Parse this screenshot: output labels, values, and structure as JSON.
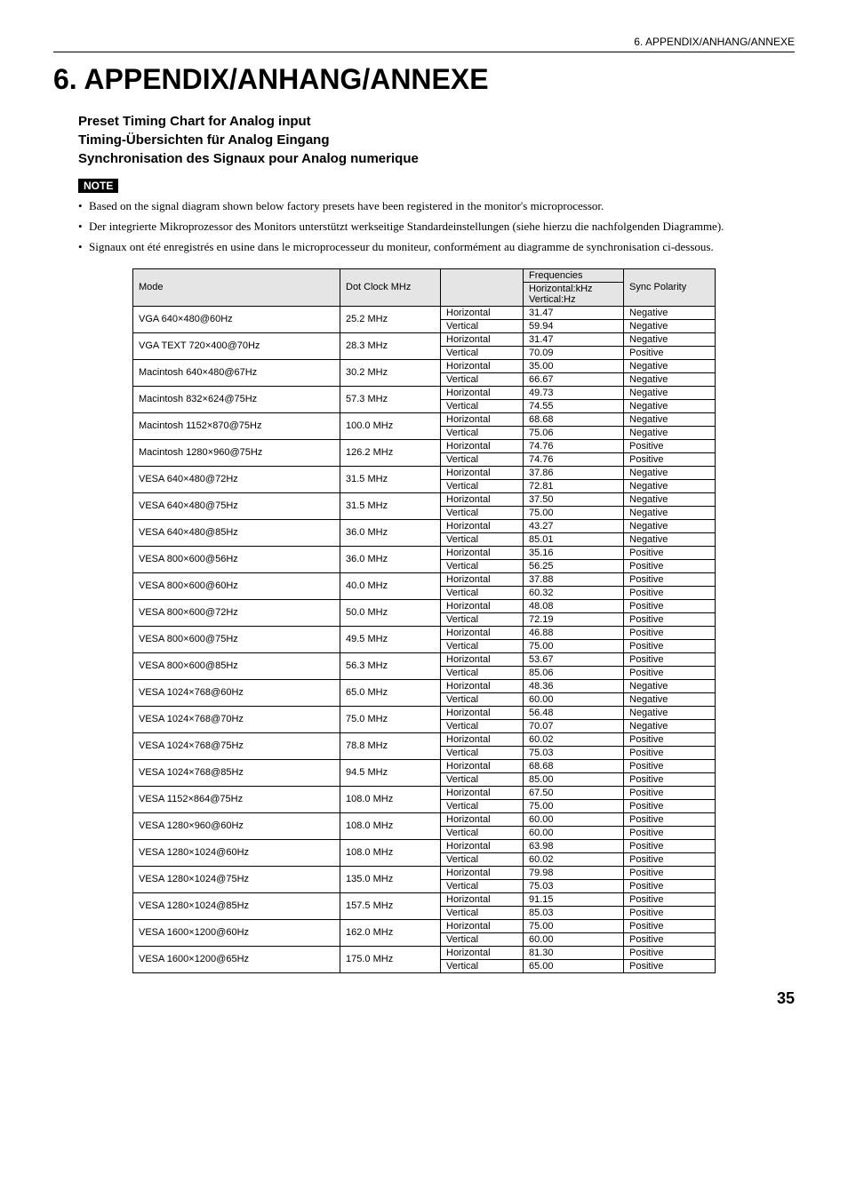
{
  "header": {
    "running_title": "6. APPENDIX/ANHANG/ANNEXE"
  },
  "title": "6. APPENDIX/ANHANG/ANNEXE",
  "subtitles": [
    "Preset Timing Chart for Analog input",
    "Timing-Übersichten für Analog Eingang",
    "Synchronisation des Signaux pour Analog numerique"
  ],
  "note_label": "NOTE",
  "notes": [
    "Based on the signal diagram shown below factory presets have been registered in the monitor's microprocessor.",
    "Der integrierte Mikroprozessor des Monitors unterstützt werkseitige Standardeinstellungen (siehe hierzu die nachfolgenden Diagramme).",
    "Signaux ont été enregistrés en usine dans le microprocesseur du moniteur, conformément au diagramme de synchronisation ci-dessous."
  ],
  "table": {
    "headers": {
      "mode": "Mode",
      "dot_clock": "Dot Clock MHz",
      "frequencies": "Frequencies",
      "freq_h": "Horizontal:kHz",
      "freq_v": "Vertical:Hz",
      "sync": "Sync Polarity"
    },
    "dir_labels": {
      "h": "Horizontal",
      "v": "Vertical"
    },
    "rows": [
      {
        "mode": "VGA 640×480@60Hz",
        "clock": "25.2 MHz",
        "h_freq": "31.47",
        "h_sync": "Negative",
        "v_freq": "59.94",
        "v_sync": "Negative"
      },
      {
        "mode": "VGA TEXT 720×400@70Hz",
        "clock": "28.3 MHz",
        "h_freq": "31.47",
        "h_sync": "Negative",
        "v_freq": "70.09",
        "v_sync": "Positive"
      },
      {
        "mode": "Macintosh 640×480@67Hz",
        "clock": "30.2 MHz",
        "h_freq": "35.00",
        "h_sync": "Negative",
        "v_freq": "66.67",
        "v_sync": "Negative"
      },
      {
        "mode": "Macintosh 832×624@75Hz",
        "clock": "57.3 MHz",
        "h_freq": "49.73",
        "h_sync": "Negative",
        "v_freq": "74.55",
        "v_sync": "Negative"
      },
      {
        "mode": "Macintosh 1152×870@75Hz",
        "clock": "100.0 MHz",
        "h_freq": "68.68",
        "h_sync": "Negative",
        "v_freq": "75.06",
        "v_sync": "Negative"
      },
      {
        "mode": "Macintosh 1280×960@75Hz",
        "clock": "126.2 MHz",
        "h_freq": "74.76",
        "h_sync": "Positive",
        "v_freq": "74.76",
        "v_sync": "Positive"
      },
      {
        "mode": "VESA 640×480@72Hz",
        "clock": "31.5 MHz",
        "h_freq": "37.86",
        "h_sync": "Negative",
        "v_freq": "72.81",
        "v_sync": "Negative"
      },
      {
        "mode": "VESA 640×480@75Hz",
        "clock": "31.5 MHz",
        "h_freq": "37.50",
        "h_sync": "Negative",
        "v_freq": "75.00",
        "v_sync": "Negative"
      },
      {
        "mode": "VESA 640×480@85Hz",
        "clock": "36.0 MHz",
        "h_freq": "43.27",
        "h_sync": "Negative",
        "v_freq": "85.01",
        "v_sync": "Negative"
      },
      {
        "mode": "VESA 800×600@56Hz",
        "clock": "36.0 MHz",
        "h_freq": "35.16",
        "h_sync": "Positive",
        "v_freq": "56.25",
        "v_sync": "Positive"
      },
      {
        "mode": "VESA 800×600@60Hz",
        "clock": "40.0 MHz",
        "h_freq": "37.88",
        "h_sync": "Positive",
        "v_freq": "60.32",
        "v_sync": "Positive"
      },
      {
        "mode": "VESA 800×600@72Hz",
        "clock": "50.0 MHz",
        "h_freq": "48.08",
        "h_sync": "Positive",
        "v_freq": "72.19",
        "v_sync": "Positive"
      },
      {
        "mode": "VESA 800×600@75Hz",
        "clock": "49.5 MHz",
        "h_freq": "46.88",
        "h_sync": "Positive",
        "v_freq": "75.00",
        "v_sync": "Positive"
      },
      {
        "mode": "VESA 800×600@85Hz",
        "clock": "56.3 MHz",
        "h_freq": "53.67",
        "h_sync": "Positive",
        "v_freq": "85.06",
        "v_sync": "Positive"
      },
      {
        "mode": "VESA 1024×768@60Hz",
        "clock": "65.0 MHz",
        "h_freq": "48.36",
        "h_sync": "Negative",
        "v_freq": "60.00",
        "v_sync": "Negative"
      },
      {
        "mode": "VESA 1024×768@70Hz",
        "clock": "75.0 MHz",
        "h_freq": "56.48",
        "h_sync": "Negative",
        "v_freq": "70.07",
        "v_sync": "Negative"
      },
      {
        "mode": "VESA 1024×768@75Hz",
        "clock": "78.8 MHz",
        "h_freq": "60.02",
        "h_sync": "Positive",
        "v_freq": "75.03",
        "v_sync": "Positive"
      },
      {
        "mode": "VESA 1024×768@85Hz",
        "clock": "94.5 MHz",
        "h_freq": "68.68",
        "h_sync": "Positive",
        "v_freq": "85.00",
        "v_sync": "Positive"
      },
      {
        "mode": "VESA 1152×864@75Hz",
        "clock": "108.0 MHz",
        "h_freq": "67.50",
        "h_sync": "Positive",
        "v_freq": "75.00",
        "v_sync": "Positive"
      },
      {
        "mode": "VESA 1280×960@60Hz",
        "clock": "108.0 MHz",
        "h_freq": "60.00",
        "h_sync": "Positive",
        "v_freq": "60.00",
        "v_sync": "Positive"
      },
      {
        "mode": "VESA 1280×1024@60Hz",
        "clock": "108.0 MHz",
        "h_freq": "63.98",
        "h_sync": "Positive",
        "v_freq": "60.02",
        "v_sync": "Positive"
      },
      {
        "mode": "VESA 1280×1024@75Hz",
        "clock": "135.0 MHz",
        "h_freq": "79.98",
        "h_sync": "Positive",
        "v_freq": "75.03",
        "v_sync": "Positive"
      },
      {
        "mode": "VESA 1280×1024@85Hz",
        "clock": "157.5 MHz",
        "h_freq": "91.15",
        "h_sync": "Positive",
        "v_freq": "85.03",
        "v_sync": "Positive"
      },
      {
        "mode": "VESA 1600×1200@60Hz",
        "clock": "162.0 MHz",
        "h_freq": "75.00",
        "h_sync": "Positive",
        "v_freq": "60.00",
        "v_sync": "Positive"
      },
      {
        "mode": "VESA 1600×1200@65Hz",
        "clock": "175.0 MHz",
        "h_freq": "81.30",
        "h_sync": "Positive",
        "v_freq": "65.00",
        "v_sync": "Positive"
      }
    ]
  },
  "page_number": "35"
}
